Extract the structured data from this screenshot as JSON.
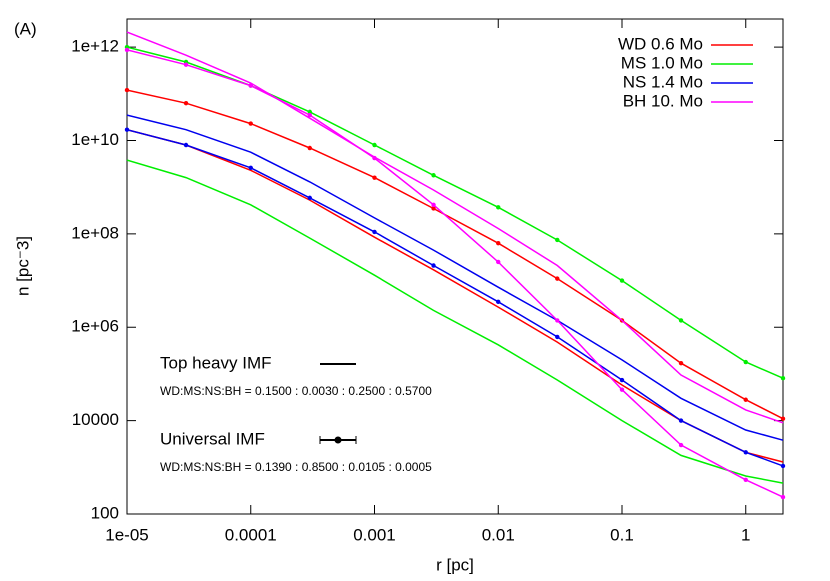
{
  "chart_data": {
    "type": "line",
    "panel_label": "(A)",
    "xlabel": "r [pc]",
    "ylabel": "n [pc⁻3]",
    "xscale": "log",
    "yscale": "log",
    "xlim": [
      1e-05,
      2
    ],
    "ylim": [
      100,
      4000000000000.0
    ],
    "xticks": [
      {
        "value": 1e-05,
        "label": "1e-05"
      },
      0.0001,
      0.001,
      0.01,
      0.1,
      1
    ],
    "yticks": [
      100,
      10000,
      {
        "value": 1000000,
        "label": "1e+06"
      },
      {
        "value": 100000000,
        "label": "1e+08"
      },
      {
        "value": 10000000000,
        "label": "1e+10"
      },
      {
        "value": 1000000000000,
        "label": "1e+12"
      }
    ],
    "legend_position": "upper right",
    "x": [
      1e-05,
      3e-05,
      0.0001,
      0.0003,
      0.001,
      0.003,
      0.01,
      0.03,
      0.1,
      0.3,
      1,
      2
    ],
    "series": [
      {
        "name": "WD 0.6 Mo",
        "color": "#ff0000",
        "values": [
          17000000000.0,
          8000000000.0,
          2300000000.0,
          530000000.0,
          85000000.0,
          17000000.0,
          2700000.0,
          480000.0,
          58000.0,
          10000.0,
          2100,
          1300
        ],
        "values_universal": [
          120000000000.0,
          63000000000.0,
          23000000000.0,
          6900000000.0,
          1600000000.0,
          350000000.0,
          63000000.0,
          11000000.0,
          1400000.0,
          170000.0,
          28000.0,
          11000.0
        ]
      },
      {
        "name": "MS 1.0 Mo",
        "color": "#00ee00",
        "values": [
          3800000000.0,
          1600000000.0,
          420000000.0,
          81000000.0,
          13000000.0,
          2300000.0,
          420000.0,
          74000.0,
          10000.0,
          1800,
          650,
          460
        ],
        "values_universal": [
          1000000000000.0,
          480000000000.0,
          150000000000.0,
          41000000000.0,
          8000000000.0,
          1800000000.0,
          370000000.0,
          74000000.0,
          10000000.0,
          1400000.0,
          180000.0,
          81000.0
        ]
      },
      {
        "name": "NS 1.4 Mo",
        "color": "#0000ee",
        "values": [
          35000000000.0,
          17000000000.0,
          5600000000.0,
          1300000000.0,
          220000000.0,
          45000000.0,
          7200000.0,
          1400000.0,
          200000.0,
          30000.0,
          6300,
          3800
        ],
        "values_universal": [
          17000000000.0,
          8000000000.0,
          2600000000.0,
          590000000.0,
          110000000.0,
          21000000.0,
          3500000.0,
          620000.0,
          74000.0,
          10000.0,
          2100,
          1070
        ]
      },
      {
        "name": "BH 10. Mo",
        "color": "#ff00ff",
        "values": [
          2100000000000.0,
          670000000000.0,
          170000000000.0,
          30000000000.0,
          4400000000.0,
          870000000.0,
          130000000.0,
          21000000.0,
          1400000.0,
          95000.0,
          17000.0,
          9000
        ],
        "values_universal": [
          870000000000.0,
          420000000000.0,
          150000000000.0,
          35000000000.0,
          4200000000.0,
          420000000.0,
          25000000.0,
          1400000.0,
          46000.0,
          3000,
          540,
          230
        ]
      }
    ],
    "imf_legend": [
      {
        "label": "Top heavy IMF",
        "ratio": "WD:MS:NS:BH = 0.1500 : 0.0030 : 0.2500 : 0.5700"
      },
      {
        "label": "Universal IMF",
        "ratio": "WD:MS:NS:BH = 0.1390 : 0.8500 : 0.0105 : 0.0005"
      }
    ]
  }
}
